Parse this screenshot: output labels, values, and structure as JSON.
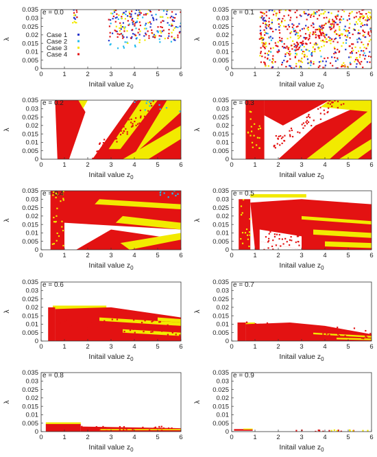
{
  "chart_data": {
    "type": "scatter",
    "layout": "grid-5x2",
    "xlabel": "Initail value z",
    "xlabel_subscript": "0",
    "ylabel": "λ",
    "xlim": [
      0,
      6
    ],
    "ylim": [
      0,
      0.035
    ],
    "x_ticks": [
      "0",
      "1",
      "2",
      "3",
      "4",
      "5",
      "6"
    ],
    "y_ticks": [
      "0",
      "0.005",
      "0.01",
      "0.015",
      "0.02",
      "0.025",
      "0.03",
      "0.035"
    ],
    "legend": {
      "placement": "left",
      "entries": [
        {
          "label": "Case 1",
          "color": "#2233cc"
        },
        {
          "label": "Case 2",
          "color": "#22bbee"
        },
        {
          "label": "Case 3",
          "color": "#f2ea00"
        },
        {
          "label": "Case 4",
          "color": "#e31212"
        }
      ]
    },
    "panels": [
      {
        "label": "e = 0.0"
      },
      {
        "label": "e = 0.1"
      },
      {
        "label": "e = 0.2"
      },
      {
        "label": "e = 0.3"
      },
      {
        "label": "e = 0.4"
      },
      {
        "label": "e = 0.5"
      },
      {
        "label": "e = 0.6"
      },
      {
        "label": "e = 0.7"
      },
      {
        "label": "e = 0.8"
      },
      {
        "label": "e = 0.9"
      }
    ]
  }
}
